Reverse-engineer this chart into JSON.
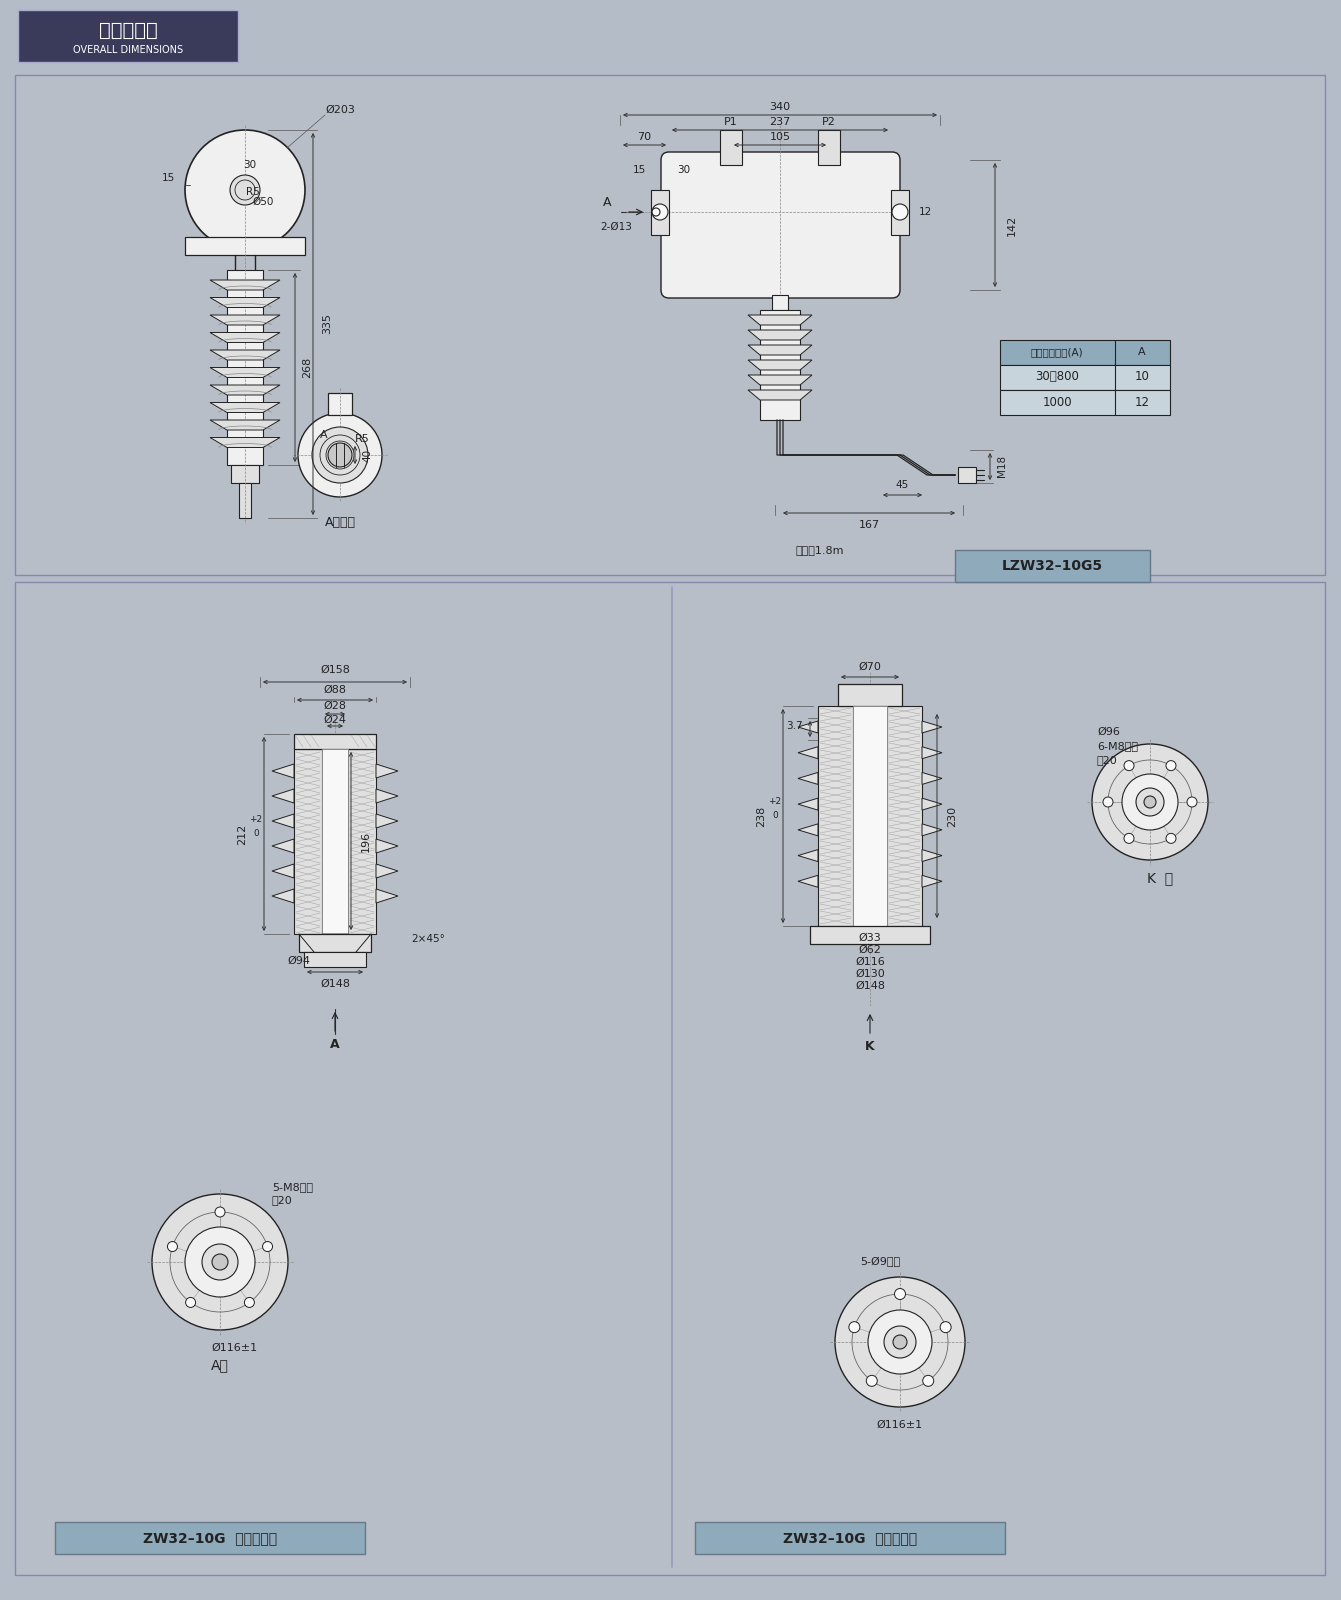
{
  "bg_color": "#b4bcc8",
  "panel_bg": "#b8bec8",
  "title_bg": "#3a3a5a",
  "title_text": "外形尺寸图",
  "title_sub": "OVERALL DIMENSIONS",
  "title_color": "#ffffff",
  "lc": "#222222",
  "dim_c": "#333333",
  "white": "#f8f8f8",
  "fill_light": "#f0f0f0",
  "fill_mid": "#e0e0e0",
  "fill_dark": "#c8c8c8",
  "hatch_c": "#aaaaaa",
  "table_hdr": "#8faabb",
  "table_row": "#c8d4dc",
  "lzw_label": "LZW32–10G5",
  "zw_up": "ZW32–10G  上绶缘套筒",
  "zw_dn": "ZW32–10G  下绶缘套筒",
  "label_bg": "#8faabb"
}
